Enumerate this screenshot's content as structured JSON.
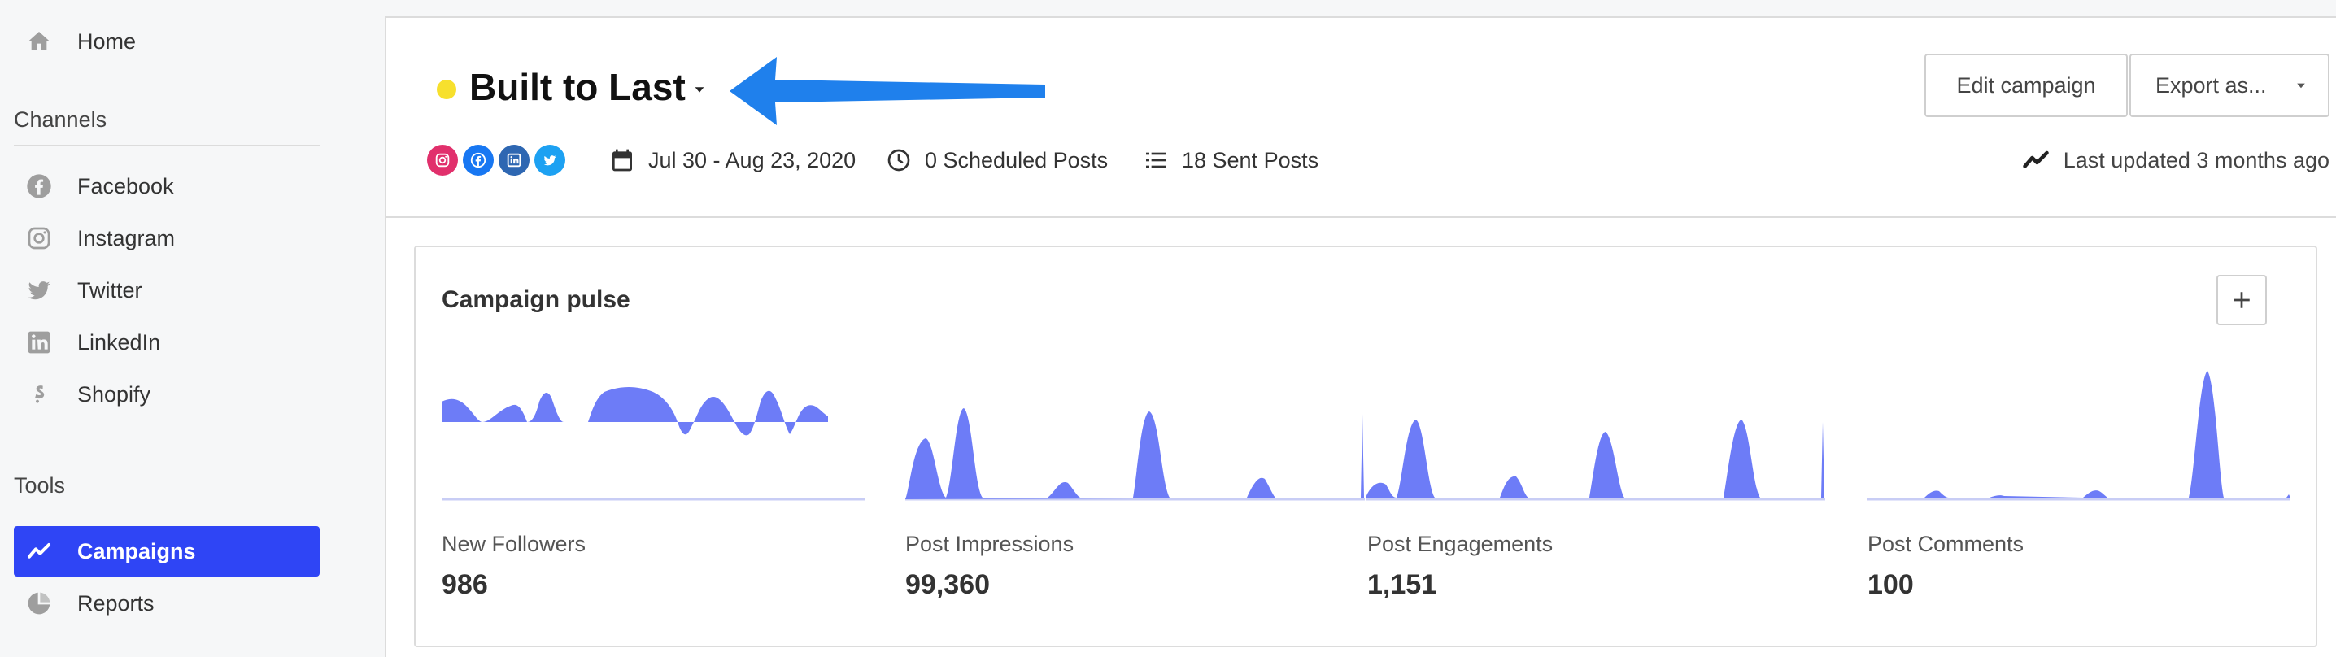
{
  "sidebar": {
    "nav_top": [
      {
        "label": "Home",
        "icon": "home-icon"
      }
    ],
    "channels_title": "Channels",
    "channels": [
      {
        "label": "Facebook",
        "icon": "facebook-icon"
      },
      {
        "label": "Instagram",
        "icon": "instagram-icon"
      },
      {
        "label": "Twitter",
        "icon": "twitter-icon"
      },
      {
        "label": "LinkedIn",
        "icon": "linkedin-icon"
      },
      {
        "label": "Shopify",
        "icon": "shopify-icon"
      }
    ],
    "tools_title": "Tools",
    "tools": [
      {
        "label": "Campaigns",
        "icon": "campaigns-icon",
        "active": true
      },
      {
        "label": "Reports",
        "icon": "reports-icon"
      }
    ]
  },
  "header": {
    "campaign_title": "Built to Last",
    "status_color": "#f7e02d",
    "edit_label": "Edit campaign",
    "export_label": "Export as...",
    "social_channels": [
      {
        "icon": "instagram-icon",
        "color": "#e1306c"
      },
      {
        "icon": "facebook-icon",
        "color": "#1877f2"
      },
      {
        "icon": "linkedin-icon",
        "color": "#2e67b2"
      },
      {
        "icon": "twitter-icon",
        "color": "#1da1f2"
      }
    ],
    "date_range": "Jul 30 - Aug 23, 2020",
    "scheduled_posts": "0 Scheduled Posts",
    "sent_posts": "18 Sent Posts",
    "last_updated": "Last updated 3 months ago"
  },
  "pulse": {
    "title": "Campaign pulse",
    "accent": "#6d7cf7",
    "metrics": [
      {
        "label": "New Followers",
        "value": "986"
      },
      {
        "label": "Post Impressions",
        "value": "99,360"
      },
      {
        "label": "Post Engagements",
        "value": "1,151"
      },
      {
        "label": "Post Comments",
        "value": "100"
      }
    ]
  }
}
